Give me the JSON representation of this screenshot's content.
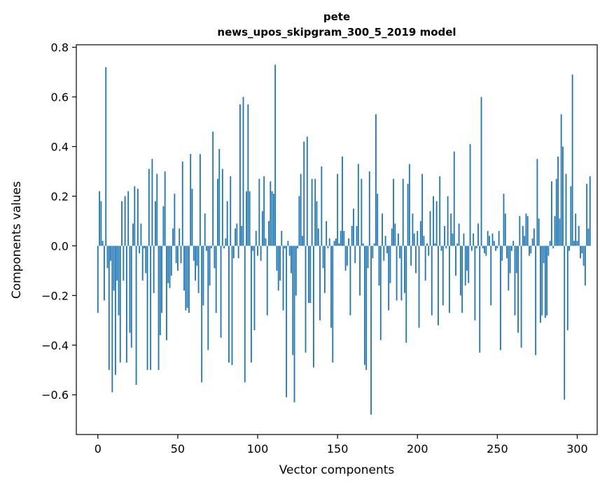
{
  "chart_data": {
    "type": "bar",
    "title_line1": "pete",
    "title_line2": "news_upos_skipgram_300_5_2019 model",
    "xlabel": "Vector components",
    "ylabel": "Components values",
    "xlim": [
      -13.5,
      312.5
    ],
    "ylim": [
      -0.76,
      0.81
    ],
    "xticks": [
      0,
      50,
      100,
      150,
      200,
      250,
      300
    ],
    "yticks": [
      -0.6,
      -0.4,
      -0.2,
      0.0,
      0.2,
      0.4,
      0.6,
      0.8
    ],
    "ytick_labels": [
      "−0.6",
      "−0.4",
      "−0.2",
      "0.0",
      "0.2",
      "0.4",
      "0.6",
      "0.8"
    ],
    "xtick_labels": [
      "0",
      "50",
      "100",
      "150",
      "200",
      "250",
      "300"
    ],
    "bar_color": "#1f77b4",
    "grid": false,
    "values": [
      -0.27,
      0.22,
      0.18,
      0.02,
      -0.22,
      0.72,
      -0.09,
      -0.5,
      -0.06,
      -0.59,
      -0.18,
      -0.52,
      -0.14,
      -0.28,
      -0.47,
      0.18,
      -0.14,
      0.2,
      -0.47,
      0.22,
      -0.35,
      -0.41,
      0.09,
      0.24,
      -0.56,
      0.23,
      -0.03,
      0.09,
      -0.14,
      -0.01,
      -0.11,
      -0.5,
      0.31,
      -0.5,
      0.35,
      -0.19,
      0.18,
      0.29,
      -0.5,
      -0.36,
      -0.27,
      0.16,
      0.3,
      -0.38,
      -0.15,
      -0.17,
      -0.12,
      0.07,
      0.21,
      -0.07,
      -0.1,
      0.07,
      -0.07,
      0.34,
      -0.18,
      -0.26,
      -0.25,
      -0.27,
      0.37,
      0.23,
      -0.06,
      -0.14,
      -0.08,
      -0.19,
      0.37,
      -0.55,
      -0.24,
      0.13,
      -0.02,
      -0.42,
      -0.16,
      -0.01,
      0.46,
      -0.09,
      -0.27,
      0.27,
      0.39,
      -0.37,
      0.31,
      -0.01,
      0.03,
      0.18,
      -0.47,
      0.28,
      -0.48,
      -0.05,
      0.07,
      0.09,
      -0.05,
      0.57,
      0.08,
      0.6,
      -0.55,
      0.22,
      0.57,
      0.22,
      -0.47,
      -0.02,
      -0.34,
      0.06,
      -0.04,
      0.27,
      -0.06,
      0.14,
      0.28,
      0.03,
      -0.28,
      0.1,
      0.26,
      0.22,
      0.21,
      0.73,
      -0.1,
      -0.18,
      -0.14,
      0.06,
      -0.26,
      -0.01,
      -0.61,
      0.02,
      -0.04,
      -0.11,
      -0.44,
      -0.63,
      -0.2,
      -0.01,
      0.2,
      0.29,
      0.04,
      0.42,
      -0.43,
      0.44,
      -0.23,
      -0.23,
      0.27,
      -0.49,
      0.27,
      0.18,
      0.07,
      -0.3,
      0.32,
      -0.09,
      -0.19,
      0.1,
      -0.01,
      0.03,
      -0.33,
      -0.47,
      0.02,
      0.03,
      0.29,
      0.01,
      0.06,
      0.36,
      0.06,
      -0.1,
      -0.08,
      0.03,
      -0.28,
      0.08,
      0.15,
      -0.07,
      0.08,
      0.33,
      -0.2,
      0.27,
      0.01,
      -0.48,
      -0.5,
      -0.09,
      0.3,
      -0.68,
      -0.05,
      0.01,
      0.53,
      0.21,
      -0.16,
      -0.38,
      0.13,
      -0.06,
      0.04,
      -0.03,
      -0.26,
      -0.15,
      0.07,
      0.27,
      0.09,
      -0.22,
      0.05,
      -0.05,
      -0.22,
      0.27,
      -0.19,
      -0.39,
      0.25,
      0.33,
      -0.08,
      0.13,
      0.05,
      -0.11,
      0.06,
      -0.33,
      0.1,
      0.29,
      0.04,
      -0.14,
      0.01,
      -0.04,
      0.14,
      -0.28,
      0.2,
      0.01,
      0.18,
      -0.32,
      0.28,
      -0.02,
      -0.24,
      0.08,
      -0.01,
      0.2,
      -0.27,
      0.13,
      0.05,
      0.38,
      -0.12,
      0.01,
      0.09,
      -0.2,
      -0.27,
      0.05,
      -0.16,
      -0.1,
      -0.15,
      0.41,
      -0.02,
      0.05,
      -0.3,
      -0.01,
      0.09,
      -0.43,
      0.6,
      -0.01,
      -0.03,
      -0.04,
      0.06,
      0.04,
      -0.24,
      0.05,
      0.02,
      -0.02,
      -0.01,
      0.06,
      -0.42,
      -0.06,
      0.21,
      0.13,
      -0.05,
      -0.18,
      -0.11,
      -0.02,
      0.02,
      -0.28,
      -0.11,
      -0.35,
      0.12,
      -0.41,
      0.08,
      0.04,
      0.13,
      0.12,
      -0.04,
      -0.03,
      0.03,
      0.07,
      -0.44,
      0.35,
      0.11,
      -0.31,
      -0.28,
      -0.07,
      -0.29,
      -0.28,
      -0.04,
      0.02,
      0.26,
      -0.01,
      0.12,
      0.27,
      0.36,
      0.11,
      0.53,
      0.4,
      -0.62,
      0.29,
      -0.34,
      -0.02,
      0.24,
      0.69,
      0.02,
      0.13,
      0.02,
      0.08,
      -0.05,
      -0.03,
      -0.08,
      -0.16,
      0.25,
      0.07,
      0.28
    ]
  }
}
